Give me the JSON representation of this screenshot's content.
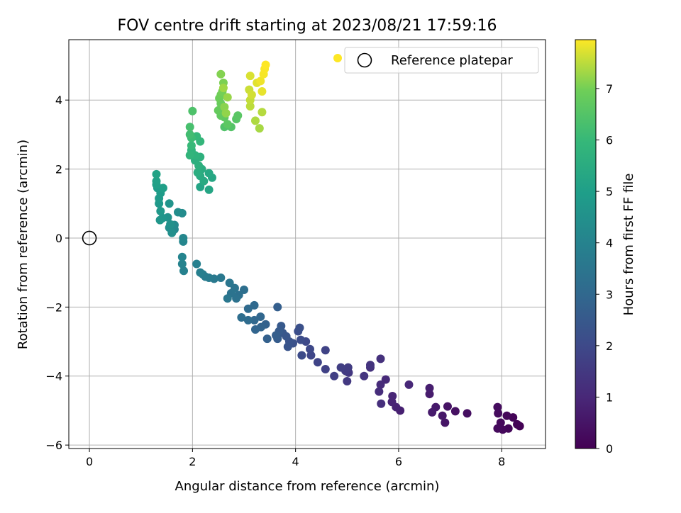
{
  "chart_data": {
    "type": "scatter",
    "title": "FOV centre drift starting at 2023/08/21 17:59:16",
    "xlabel": "Angular distance from reference (arcmin)",
    "ylabel": "Rotation from reference (arcmin)",
    "colorbar_label": "Hours from first FF file",
    "xlim": [
      -0.4,
      8.85
    ],
    "ylim": [
      -6.1,
      5.75
    ],
    "clim": [
      0,
      7.95
    ],
    "x_ticks": [
      0,
      2,
      4,
      6,
      8
    ],
    "y_ticks": [
      -6,
      -4,
      -2,
      0,
      2,
      4
    ],
    "colorbar_ticks": [
      0,
      1,
      2,
      3,
      4,
      5,
      6,
      7
    ],
    "grid": true,
    "colormap": "viridis",
    "legend": {
      "position": "top-right",
      "entries": [
        "Reference platepar"
      ]
    },
    "reference_point": {
      "x": 0,
      "y": 0
    },
    "legend_marker_color": "#fde725",
    "points": [
      [
        8.35,
        -5.45,
        0.02
      ],
      [
        8.3,
        -5.4,
        0.05
      ],
      [
        8.22,
        -5.2,
        0.08
      ],
      [
        8.13,
        -5.52,
        0.12
      ],
      [
        8.1,
        -5.15,
        0.15
      ],
      [
        8.02,
        -5.55,
        0.18
      ],
      [
        7.98,
        -5.35,
        0.2
      ],
      [
        7.92,
        -5.52,
        0.22
      ],
      [
        7.93,
        -5.08,
        0.25
      ],
      [
        7.92,
        -4.9,
        0.28
      ],
      [
        7.33,
        -5.08,
        0.35
      ],
      [
        7.1,
        -5.02,
        0.4
      ],
      [
        6.95,
        -4.88,
        0.45
      ],
      [
        6.9,
        -5.35,
        0.5
      ],
      [
        6.85,
        -5.15,
        0.55
      ],
      [
        6.72,
        -4.9,
        0.6
      ],
      [
        6.65,
        -5.05,
        0.65
      ],
      [
        6.6,
        -4.52,
        0.7
      ],
      [
        6.6,
        -4.35,
        0.75
      ],
      [
        6.03,
        -5.0,
        0.8
      ],
      [
        5.95,
        -4.9,
        0.85
      ],
      [
        5.87,
        -4.75,
        0.9
      ],
      [
        5.88,
        -4.58,
        0.95
      ],
      [
        6.2,
        -4.25,
        1.0
      ],
      [
        5.75,
        -4.1,
        1.05
      ],
      [
        5.65,
        -4.25,
        1.1
      ],
      [
        5.62,
        -4.45,
        1.15
      ],
      [
        5.66,
        -4.8,
        1.2
      ],
      [
        5.65,
        -3.5,
        1.25
      ],
      [
        5.45,
        -3.75,
        1.3
      ],
      [
        5.45,
        -3.68,
        1.35
      ],
      [
        5.33,
        -4.0,
        1.4
      ],
      [
        5.03,
        -3.9,
        1.45
      ],
      [
        5.0,
        -4.15,
        1.5
      ],
      [
        4.97,
        -3.85,
        1.55
      ],
      [
        5.02,
        -3.75,
        1.6
      ],
      [
        4.88,
        -3.75,
        1.65
      ],
      [
        4.75,
        -4.0,
        1.7
      ],
      [
        4.58,
        -3.8,
        1.75
      ],
      [
        4.58,
        -3.25,
        1.8
      ],
      [
        4.43,
        -3.6,
        1.85
      ],
      [
        4.3,
        -3.4,
        1.9
      ],
      [
        4.28,
        -3.22,
        1.95
      ],
      [
        4.2,
        -3.0,
        2.0
      ],
      [
        4.12,
        -3.4,
        2.05
      ],
      [
        4.1,
        -2.95,
        2.1
      ],
      [
        4.05,
        -2.7,
        2.15
      ],
      [
        4.08,
        -2.6,
        2.2
      ],
      [
        3.95,
        -3.05,
        2.25
      ],
      [
        3.88,
        -3.0,
        2.3
      ],
      [
        3.85,
        -3.15,
        2.35
      ],
      [
        3.82,
        -2.85,
        2.4
      ],
      [
        3.75,
        -2.75,
        2.45
      ],
      [
        3.72,
        -2.55,
        2.5
      ],
      [
        3.68,
        -2.7,
        2.55
      ],
      [
        3.65,
        -2.92,
        2.6
      ],
      [
        3.62,
        -2.82,
        2.65
      ],
      [
        3.65,
        -2.0,
        2.7
      ],
      [
        3.45,
        -2.92,
        2.75
      ],
      [
        3.42,
        -2.5,
        2.8
      ],
      [
        3.33,
        -2.58,
        2.85
      ],
      [
        3.22,
        -2.65,
        2.9
      ],
      [
        3.32,
        -2.28,
        2.95
      ],
      [
        3.2,
        -2.38,
        3.0
      ],
      [
        3.2,
        -1.95,
        3.05
      ],
      [
        3.08,
        -2.05,
        3.1
      ],
      [
        3.08,
        -2.38,
        3.15
      ],
      [
        2.95,
        -2.3,
        3.2
      ],
      [
        3.0,
        -1.5,
        3.25
      ],
      [
        2.9,
        -1.65,
        3.3
      ],
      [
        2.85,
        -1.75,
        3.35
      ],
      [
        2.75,
        -1.6,
        3.4
      ],
      [
        2.82,
        -1.45,
        3.45
      ],
      [
        2.72,
        -1.3,
        3.5
      ],
      [
        2.68,
        -1.75,
        3.55
      ],
      [
        2.55,
        -1.15,
        3.6
      ],
      [
        2.42,
        -1.18,
        3.65
      ],
      [
        2.32,
        -1.15,
        3.7
      ],
      [
        2.25,
        -1.12,
        3.75
      ],
      [
        2.2,
        -1.05,
        3.8
      ],
      [
        2.15,
        -1.0,
        3.85
      ],
      [
        2.08,
        -0.75,
        3.9
      ],
      [
        1.83,
        -0.95,
        3.95
      ],
      [
        1.8,
        -0.75,
        4.0
      ],
      [
        1.8,
        -0.55,
        4.05
      ],
      [
        1.82,
        -0.1,
        4.1
      ],
      [
        1.82,
        0.0,
        4.15
      ],
      [
        1.65,
        0.25,
        4.2
      ],
      [
        1.65,
        0.38,
        4.25
      ],
      [
        1.8,
        0.72,
        4.3
      ],
      [
        1.72,
        0.75,
        4.35
      ],
      [
        1.55,
        0.3,
        4.4
      ],
      [
        1.6,
        0.15,
        4.45
      ],
      [
        1.57,
        0.4,
        4.5
      ],
      [
        1.52,
        0.6,
        4.55
      ],
      [
        1.55,
        1.0,
        4.6
      ],
      [
        1.42,
        0.58,
        4.65
      ],
      [
        1.37,
        0.52,
        4.7
      ],
      [
        1.38,
        0.78,
        4.75
      ],
      [
        1.35,
        1.0,
        4.8
      ],
      [
        1.35,
        1.15,
        4.85
      ],
      [
        1.38,
        1.3,
        4.9
      ],
      [
        1.32,
        1.45,
        4.95
      ],
      [
        1.43,
        1.45,
        5.0
      ],
      [
        1.3,
        1.55,
        5.05
      ],
      [
        1.3,
        1.65,
        5.1
      ],
      [
        1.3,
        1.85,
        5.15
      ],
      [
        2.15,
        1.48,
        5.2
      ],
      [
        2.32,
        1.4,
        5.25
      ],
      [
        2.38,
        1.75,
        5.3
      ],
      [
        2.32,
        1.88,
        5.35
      ],
      [
        2.22,
        1.65,
        5.4
      ],
      [
        2.15,
        1.8,
        5.45
      ],
      [
        2.18,
        2.0,
        5.5
      ],
      [
        2.1,
        1.9,
        5.55
      ],
      [
        2.05,
        2.25,
        5.6
      ],
      [
        2.12,
        2.1,
        5.65
      ],
      [
        2.15,
        2.35,
        5.7
      ],
      [
        2.05,
        2.4,
        5.75
      ],
      [
        1.98,
        2.55,
        5.8
      ],
      [
        1.95,
        2.4,
        5.85
      ],
      [
        2.15,
        2.8,
        5.9
      ],
      [
        2.08,
        2.95,
        5.95
      ],
      [
        1.98,
        2.68,
        6.0
      ],
      [
        1.98,
        2.9,
        6.1
      ],
      [
        1.95,
        3.0,
        6.2
      ],
      [
        1.95,
        3.22,
        6.3
      ],
      [
        2.0,
        3.68,
        6.4
      ],
      [
        2.62,
        3.22,
        6.45
      ],
      [
        2.75,
        3.22,
        6.5
      ],
      [
        2.85,
        3.45,
        6.55
      ],
      [
        2.88,
        3.55,
        6.6
      ],
      [
        2.68,
        3.3,
        6.65
      ],
      [
        2.62,
        3.5,
        6.7
      ],
      [
        2.55,
        3.55,
        6.75
      ],
      [
        2.5,
        3.7,
        6.8
      ],
      [
        2.55,
        3.9,
        6.85
      ],
      [
        2.52,
        4.05,
        6.9
      ],
      [
        2.55,
        4.15,
        6.95
      ],
      [
        2.58,
        4.25,
        7.0
      ],
      [
        2.6,
        4.5,
        7.05
      ],
      [
        2.55,
        4.75,
        7.1
      ],
      [
        2.62,
        3.8,
        7.15
      ],
      [
        2.65,
        3.62,
        7.2
      ],
      [
        2.68,
        4.08,
        7.25
      ],
      [
        2.6,
        4.35,
        7.3
      ],
      [
        3.3,
        3.18,
        7.35
      ],
      [
        3.22,
        3.4,
        7.4
      ],
      [
        3.35,
        3.65,
        7.45
      ],
      [
        3.12,
        3.82,
        7.5
      ],
      [
        3.12,
        4.0,
        7.55
      ],
      [
        3.1,
        4.3,
        7.6
      ],
      [
        3.15,
        4.15,
        7.65
      ],
      [
        3.12,
        4.7,
        7.7
      ],
      [
        3.25,
        4.5,
        7.75
      ],
      [
        3.35,
        4.25,
        7.8
      ],
      [
        3.32,
        4.55,
        7.85
      ],
      [
        3.38,
        4.75,
        7.9
      ],
      [
        3.4,
        4.9,
        7.92
      ],
      [
        3.42,
        5.02,
        7.95
      ]
    ]
  }
}
